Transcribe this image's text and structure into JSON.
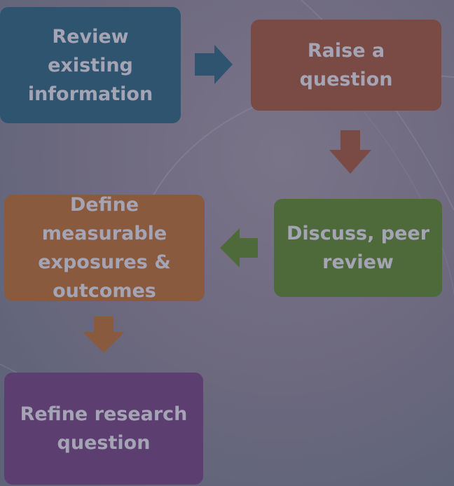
{
  "diagram": {
    "steps": [
      {
        "label": "Review\nexisting\ninformation",
        "color": "#2e5470"
      },
      {
        "label": "Raise a\nquestion",
        "color": "#7a4a44"
      },
      {
        "label": "Discuss, peer\nreview",
        "color": "#4e6a3a"
      },
      {
        "label": "Define\nmeasurable\nexposures &\noutcomes",
        "color": "#895a3e"
      },
      {
        "label": "Refine research\nquestion",
        "color": "#5c3e70"
      }
    ],
    "arrows": [
      {
        "from": "Review existing information",
        "to": "Raise a question",
        "color": "#2e5470",
        "direction": "right"
      },
      {
        "from": "Raise a question",
        "to": "Discuss, peer review",
        "color": "#7a4a44",
        "direction": "down"
      },
      {
        "from": "Discuss, peer review",
        "to": "Define measurable exposures & outcomes",
        "color": "#4e6a3a",
        "direction": "left"
      },
      {
        "from": "Define measurable exposures & outcomes",
        "to": "Refine research question",
        "color": "#895a3e",
        "direction": "down"
      }
    ]
  }
}
